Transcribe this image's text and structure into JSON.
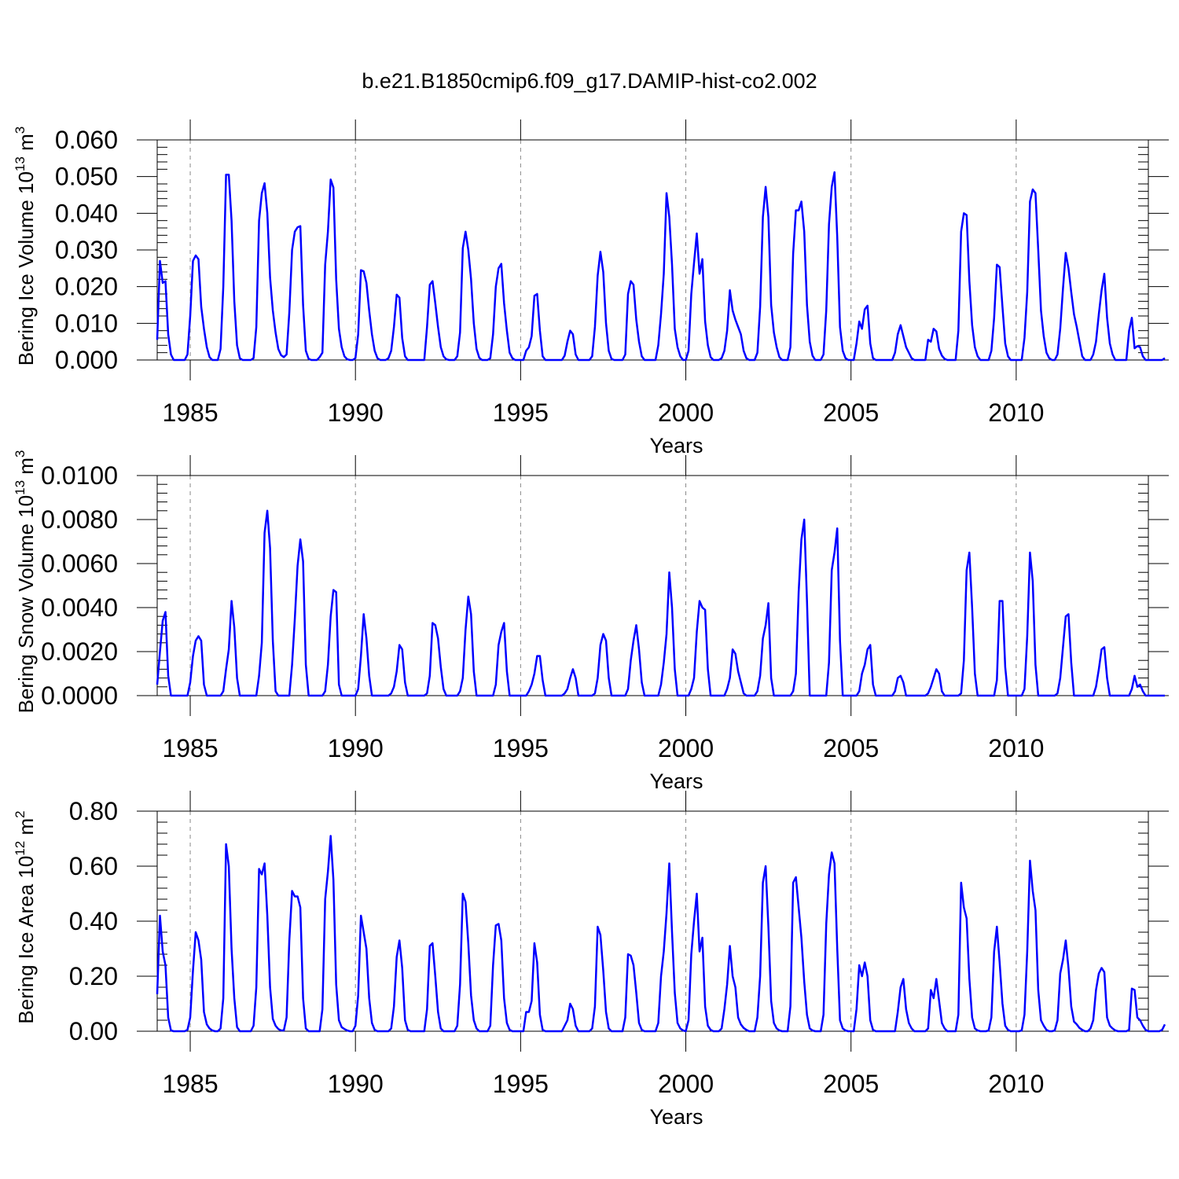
{
  "title": "b.e21.B1850cmip6.f09_g17.DAMIP-hist-co2.002",
  "colors": {
    "series": "#0000ff",
    "axes": "#000000",
    "grid": "#888888"
  },
  "chart_data": [
    {
      "type": "line",
      "ylabel_main": "Bering Ice Volume 10",
      "ylabel_exp": "13",
      "ylabel_unit": " m",
      "ylabel_unit_exp": "3",
      "xlabel": "Years",
      "xlim": [
        1984,
        2014
      ],
      "ylim": [
        0,
        0.06
      ],
      "yticks": [
        0,
        0.01,
        0.02,
        0.03,
        0.04,
        0.05,
        0.06
      ],
      "ytick_labels": [
        "0.000",
        "0.010",
        "0.020",
        "0.030",
        "0.040",
        "0.050",
        "0.060"
      ],
      "xticks": [
        1985,
        1990,
        1995,
        2000,
        2005,
        2010
      ],
      "xtick_labels": [
        "1985",
        "1990",
        "1995",
        "2000",
        "2005",
        "2010"
      ],
      "grid": "dashed vertical at 5-year ticks",
      "start": 1984.0,
      "step_months": 1,
      "values": [
        0.0055,
        0.027,
        0.021,
        0.0215,
        0.007,
        0.0015,
        0.0,
        0.0,
        0.0,
        0.0,
        0.0,
        0.0015,
        0.012,
        0.027,
        0.0285,
        0.0275,
        0.0145,
        0.0085,
        0.0035,
        0.0008,
        0.0,
        0.0,
        0.0,
        0.003,
        0.02,
        0.0505,
        0.0505,
        0.038,
        0.016,
        0.004,
        0.0005,
        0.0,
        0.0,
        0.0,
        0.0,
        0.0005,
        0.009,
        0.038,
        0.0455,
        0.0482,
        0.04,
        0.0225,
        0.0135,
        0.0075,
        0.003,
        0.0013,
        0.0008,
        0.0015,
        0.013,
        0.03,
        0.035,
        0.0362,
        0.0365,
        0.015,
        0.0025,
        0.0003,
        0.0,
        0.0,
        0.0,
        0.0008,
        0.002,
        0.026,
        0.035,
        0.0492,
        0.047,
        0.022,
        0.0085,
        0.0035,
        0.001,
        0.0002,
        0.0,
        0.0,
        0.0005,
        0.007,
        0.0245,
        0.0242,
        0.021,
        0.0135,
        0.007,
        0.0025,
        0.0005,
        0.0,
        0.0,
        0.0,
        0.0005,
        0.0025,
        0.009,
        0.0178,
        0.017,
        0.006,
        0.001,
        0.0,
        0.0,
        0.0,
        0.0,
        0.0,
        0.0,
        0.0,
        0.009,
        0.0205,
        0.0215,
        0.0155,
        0.009,
        0.0035,
        0.001,
        0.0002,
        0.0,
        0.0,
        0.0,
        0.001,
        0.0075,
        0.0305,
        0.035,
        0.03,
        0.022,
        0.01,
        0.003,
        0.0006,
        0.0,
        0.0,
        0.0,
        0.0005,
        0.007,
        0.02,
        0.025,
        0.0262,
        0.0155,
        0.008,
        0.002,
        0.0005,
        0.0,
        0.0,
        0.0,
        0.0,
        0.0025,
        0.0035,
        0.0065,
        0.0175,
        0.018,
        0.008,
        0.001,
        0.0,
        0.0,
        0.0,
        0.0,
        0.0,
        0.0,
        0.0,
        0.0012,
        0.005,
        0.008,
        0.007,
        0.0015,
        0.0,
        0.0,
        0.0,
        0.0,
        0.0,
        0.001,
        0.009,
        0.023,
        0.0295,
        0.024,
        0.01,
        0.0025,
        0.0003,
        0.0,
        0.0,
        0.0,
        0.0,
        0.0015,
        0.018,
        0.0215,
        0.0205,
        0.011,
        0.005,
        0.001,
        0.0,
        0.0,
        0.0,
        0.0,
        0.0,
        0.004,
        0.0125,
        0.0235,
        0.0455,
        0.039,
        0.026,
        0.0085,
        0.0035,
        0.001,
        0.0,
        0.0,
        0.0025,
        0.018,
        0.0265,
        0.0345,
        0.0235,
        0.0275,
        0.0105,
        0.004,
        0.0008,
        0.0,
        0.0,
        0.0,
        0.0005,
        0.0025,
        0.008,
        0.019,
        0.0135,
        0.011,
        0.009,
        0.007,
        0.0025,
        0.0005,
        0.0,
        0.0,
        0.0,
        0.002,
        0.0145,
        0.039,
        0.0472,
        0.039,
        0.015,
        0.0075,
        0.0035,
        0.0008,
        0.0,
        0.0,
        0.0,
        0.0035,
        0.029,
        0.0408,
        0.0408,
        0.0432,
        0.035,
        0.015,
        0.005,
        0.0012,
        0.0,
        0.0,
        0.0,
        0.0015,
        0.0135,
        0.037,
        0.0472,
        0.0512,
        0.0335,
        0.009,
        0.0025,
        0.0005,
        0.0,
        0.0,
        0.0,
        0.0045,
        0.0105,
        0.0085,
        0.0138,
        0.0148,
        0.0045,
        0.0005,
        0.0,
        0.0,
        0.0,
        0.0,
        0.0,
        0.0,
        0.0,
        0.002,
        0.007,
        0.0095,
        0.0065,
        0.0035,
        0.002,
        0.0005,
        0.0,
        0.0,
        0.0,
        0.0,
        0.0,
        0.0055,
        0.005,
        0.0085,
        0.0078,
        0.003,
        0.0012,
        0.0003,
        0.0,
        0.0,
        0.0,
        0.0,
        0.008,
        0.035,
        0.04,
        0.0395,
        0.0215,
        0.0095,
        0.0035,
        0.001,
        0.0,
        0.0,
        0.0,
        0.0,
        0.0025,
        0.0115,
        0.026,
        0.0253,
        0.0145,
        0.0045,
        0.001,
        0.0,
        0.0,
        0.0,
        0.0,
        0.0,
        0.006,
        0.0185,
        0.0432,
        0.0465,
        0.0455,
        0.03,
        0.0135,
        0.0065,
        0.002,
        0.0005,
        0.0,
        0.0,
        0.0015,
        0.0085,
        0.0195,
        0.0292,
        0.025,
        0.0185,
        0.0125,
        0.009,
        0.005,
        0.001,
        0.0,
        0.0,
        0.0,
        0.0015,
        0.005,
        0.0125,
        0.019,
        0.0235,
        0.0115,
        0.0045,
        0.0015,
        0.0,
        0.0,
        0.0,
        0.0,
        0.0,
        0.008,
        0.0115,
        0.0032,
        0.0038,
        0.0035,
        0.001,
        0.0,
        0.0,
        0.0,
        0.0,
        0.0,
        0.0,
        0.0,
        0.0005
      ]
    },
    {
      "type": "line",
      "ylabel_main": "Bering Snow Volume 10",
      "ylabel_exp": "13",
      "ylabel_unit": " m",
      "ylabel_unit_exp": "3",
      "xlabel": "Years",
      "xlim": [
        1984,
        2014
      ],
      "ylim": [
        0,
        0.01
      ],
      "yticks": [
        0,
        0.002,
        0.004,
        0.006,
        0.008,
        0.01
      ],
      "ytick_labels": [
        "0.0000",
        "0.0020",
        "0.0040",
        "0.0060",
        "0.0080",
        "0.0100"
      ],
      "xticks": [
        1985,
        1990,
        1995,
        2000,
        2005,
        2010
      ],
      "xtick_labels": [
        "1985",
        "1990",
        "1995",
        "2000",
        "2005",
        "2010"
      ],
      "grid": "dashed vertical at 5-year ticks",
      "start": 1984.0,
      "step_months": 1,
      "values": [
        0.0005,
        0.002,
        0.0034,
        0.0038,
        0.0009,
        0.0,
        0.0,
        0.0,
        0.0,
        0.0,
        0.0,
        0.0,
        0.0006,
        0.0018,
        0.0025,
        0.0027,
        0.0025,
        0.0005,
        0.0,
        0.0,
        0.0,
        0.0,
        0.0,
        0.0,
        0.0002,
        0.0012,
        0.0021,
        0.0043,
        0.0031,
        0.0008,
        0.0,
        0.0,
        0.0,
        0.0,
        0.0,
        0.0,
        0.0,
        0.0009,
        0.0024,
        0.0074,
        0.0084,
        0.0067,
        0.0025,
        0.0002,
        0.0,
        0.0,
        0.0,
        0.0,
        0.0,
        0.0014,
        0.0035,
        0.0059,
        0.0071,
        0.0061,
        0.0014,
        0.0,
        0.0,
        0.0,
        0.0,
        0.0,
        0.0,
        0.0002,
        0.0014,
        0.0036,
        0.0048,
        0.0047,
        0.0005,
        0.0,
        0.0,
        0.0,
        0.0,
        0.0,
        0.0,
        0.0003,
        0.0018,
        0.0037,
        0.0026,
        0.0009,
        0.0,
        0.0,
        0.0,
        0.0,
        0.0,
        0.0,
        0.0,
        0.0001,
        0.0004,
        0.0011,
        0.0023,
        0.0021,
        0.0006,
        0.0,
        0.0,
        0.0,
        0.0,
        0.0,
        0.0,
        0.0,
        0.0001,
        0.0009,
        0.0033,
        0.0032,
        0.0026,
        0.0013,
        0.0003,
        0.0,
        0.0,
        0.0,
        0.0,
        0.0,
        0.0002,
        0.0008,
        0.003,
        0.0045,
        0.0037,
        0.0011,
        0.0,
        0.0,
        0.0,
        0.0,
        0.0,
        0.0,
        0.0,
        0.0005,
        0.0023,
        0.0029,
        0.0033,
        0.0011,
        0.0,
        0.0,
        0.0,
        0.0,
        0.0,
        0.0,
        0.0,
        0.0002,
        0.0005,
        0.001,
        0.0018,
        0.0018,
        0.0007,
        0.0,
        0.0,
        0.0,
        0.0,
        0.0,
        0.0,
        0.0,
        0.0001,
        0.0003,
        0.0008,
        0.0012,
        0.0008,
        0.0,
        0.0,
        0.0,
        0.0,
        0.0,
        0.0,
        0.0001,
        0.0008,
        0.0023,
        0.0028,
        0.0025,
        0.0008,
        0.0,
        0.0,
        0.0,
        0.0,
        0.0,
        0.0,
        0.0003,
        0.0016,
        0.0025,
        0.0032,
        0.0021,
        0.0006,
        0.0,
        0.0,
        0.0,
        0.0,
        0.0,
        0.0,
        0.0005,
        0.0015,
        0.0028,
        0.0056,
        0.004,
        0.0012,
        0.0,
        0.0,
        0.0,
        0.0,
        0.0,
        0.0003,
        0.0008,
        0.0029,
        0.0043,
        0.004,
        0.0039,
        0.0012,
        0.0,
        0.0,
        0.0,
        0.0,
        0.0,
        0.0,
        0.0003,
        0.0008,
        0.0021,
        0.0019,
        0.0011,
        0.0006,
        0.0001,
        0.0,
        0.0,
        0.0,
        0.0,
        0.0002,
        0.0009,
        0.0026,
        0.0032,
        0.0042,
        0.0008,
        0.0,
        0.0,
        0.0,
        0.0,
        0.0,
        0.0,
        0.0,
        0.0002,
        0.001,
        0.0047,
        0.0071,
        0.008,
        0.0043,
        0.0,
        0.0,
        0.0,
        0.0,
        0.0,
        0.0,
        0.0,
        0.0015,
        0.0057,
        0.0065,
        0.0076,
        0.0025,
        0.0,
        0.0,
        0.0,
        0.0,
        0.0,
        0.0,
        0.0002,
        0.001,
        0.0014,
        0.0021,
        0.0023,
        0.0005,
        0.0,
        0.0,
        0.0,
        0.0,
        0.0,
        0.0,
        0.0,
        0.0002,
        0.0008,
        0.0009,
        0.0006,
        0.0,
        0.0,
        0.0,
        0.0,
        0.0,
        0.0,
        0.0,
        0.0,
        0.0001,
        0.0004,
        0.0008,
        0.0012,
        0.001,
        0.0002,
        0.0,
        0.0,
        0.0,
        0.0,
        0.0,
        0.0,
        0.0001,
        0.0016,
        0.0057,
        0.0065,
        0.004,
        0.001,
        0.0,
        0.0,
        0.0,
        0.0,
        0.0,
        0.0,
        0.0,
        0.0007,
        0.0043,
        0.0043,
        0.0013,
        0.0,
        0.0,
        0.0,
        0.0,
        0.0,
        0.0,
        0.0003,
        0.0027,
        0.0065,
        0.0052,
        0.0014,
        0.0,
        0.0,
        0.0,
        0.0,
        0.0,
        0.0,
        0.0,
        0.0001,
        0.0008,
        0.0022,
        0.0036,
        0.0037,
        0.0015,
        0.0,
        0.0,
        0.0,
        0.0,
        0.0,
        0.0,
        0.0,
        0.0,
        0.0004,
        0.0012,
        0.0021,
        0.0022,
        0.0008,
        0.0,
        0.0,
        0.0,
        0.0,
        0.0,
        0.0,
        0.0,
        0.0,
        0.0003,
        0.0009,
        0.0004,
        0.0005,
        0.0002,
        0.0,
        0.0,
        0.0,
        0.0,
        0.0,
        0.0,
        0.0,
        0.0
      ]
    },
    {
      "type": "line",
      "ylabel_main": "Bering Ice Area 10",
      "ylabel_exp": "12",
      "ylabel_unit": " m",
      "ylabel_unit_exp": "2",
      "xlabel": "Years",
      "xlim": [
        1984,
        2014
      ],
      "ylim": [
        0,
        0.8
      ],
      "yticks": [
        0,
        0.2,
        0.4,
        0.6,
        0.8
      ],
      "ytick_labels": [
        "0.00",
        "0.20",
        "0.40",
        "0.60",
        "0.80"
      ],
      "xticks": [
        1985,
        1990,
        1995,
        2000,
        2005,
        2010
      ],
      "xtick_labels": [
        "1985",
        "1990",
        "1995",
        "2000",
        "2005",
        "2010"
      ],
      "grid": "dashed vertical at 5-year ticks",
      "start": 1984.0,
      "step_months": 1,
      "values": [
        0.135,
        0.42,
        0.29,
        0.24,
        0.05,
        0.003,
        0.0,
        0.0,
        0.0,
        0.0,
        0.0,
        0.005,
        0.05,
        0.22,
        0.36,
        0.33,
        0.26,
        0.07,
        0.025,
        0.01,
        0.003,
        0.0,
        0.0,
        0.01,
        0.12,
        0.68,
        0.6,
        0.3,
        0.12,
        0.015,
        0.0,
        0.0,
        0.0,
        0.0,
        0.0,
        0.02,
        0.16,
        0.59,
        0.57,
        0.61,
        0.42,
        0.16,
        0.045,
        0.02,
        0.008,
        0.003,
        0.003,
        0.05,
        0.33,
        0.51,
        0.49,
        0.49,
        0.45,
        0.12,
        0.01,
        0.0,
        0.0,
        0.0,
        0.0,
        0.0,
        0.08,
        0.48,
        0.58,
        0.71,
        0.55,
        0.17,
        0.04,
        0.015,
        0.008,
        0.003,
        0.0,
        0.0,
        0.02,
        0.13,
        0.42,
        0.36,
        0.3,
        0.12,
        0.03,
        0.005,
        0.0,
        0.0,
        0.0,
        0.0,
        0.0,
        0.01,
        0.09,
        0.27,
        0.33,
        0.23,
        0.04,
        0.005,
        0.0,
        0.0,
        0.0,
        0.0,
        0.0,
        0.0,
        0.08,
        0.31,
        0.32,
        0.2,
        0.07,
        0.01,
        0.0,
        0.0,
        0.0,
        0.0,
        0.0,
        0.02,
        0.17,
        0.5,
        0.47,
        0.32,
        0.13,
        0.04,
        0.01,
        0.0,
        0.0,
        0.0,
        0.0,
        0.02,
        0.24,
        0.385,
        0.39,
        0.33,
        0.12,
        0.03,
        0.005,
        0.0,
        0.0,
        0.0,
        0.0,
        0.0,
        0.07,
        0.07,
        0.11,
        0.32,
        0.25,
        0.06,
        0.005,
        0.0,
        0.0,
        0.0,
        0.0,
        0.0,
        0.0,
        0.0,
        0.02,
        0.04,
        0.1,
        0.08,
        0.02,
        0.0,
        0.0,
        0.0,
        0.0,
        0.0,
        0.01,
        0.09,
        0.38,
        0.35,
        0.22,
        0.07,
        0.01,
        0.0,
        0.0,
        0.0,
        0.0,
        0.0,
        0.05,
        0.28,
        0.275,
        0.24,
        0.14,
        0.03,
        0.005,
        0.0,
        0.0,
        0.0,
        0.0,
        0.0,
        0.03,
        0.2,
        0.29,
        0.43,
        0.61,
        0.36,
        0.14,
        0.03,
        0.01,
        0.003,
        0.0,
        0.04,
        0.28,
        0.4,
        0.5,
        0.29,
        0.34,
        0.09,
        0.02,
        0.005,
        0.0,
        0.0,
        0.0,
        0.01,
        0.08,
        0.17,
        0.31,
        0.2,
        0.16,
        0.05,
        0.025,
        0.012,
        0.005,
        0.0,
        0.0,
        0.0,
        0.05,
        0.2,
        0.54,
        0.6,
        0.38,
        0.11,
        0.03,
        0.01,
        0.003,
        0.0,
        0.0,
        0.0,
        0.09,
        0.54,
        0.56,
        0.45,
        0.34,
        0.18,
        0.06,
        0.01,
        0.003,
        0.0,
        0.0,
        0.0,
        0.06,
        0.39,
        0.57,
        0.65,
        0.61,
        0.3,
        0.04,
        0.01,
        0.003,
        0.0,
        0.0,
        0.0,
        0.08,
        0.24,
        0.2,
        0.25,
        0.2,
        0.04,
        0.005,
        0.0,
        0.0,
        0.0,
        0.0,
        0.0,
        0.0,
        0.0,
        0.0,
        0.07,
        0.16,
        0.19,
        0.08,
        0.03,
        0.01,
        0.0,
        0.0,
        0.0,
        0.0,
        0.0,
        0.01,
        0.15,
        0.12,
        0.19,
        0.11,
        0.03,
        0.01,
        0.0,
        0.0,
        0.0,
        0.0,
        0.06,
        0.54,
        0.45,
        0.41,
        0.19,
        0.05,
        0.01,
        0.003,
        0.0,
        0.0,
        0.0,
        0.003,
        0.05,
        0.29,
        0.38,
        0.25,
        0.1,
        0.02,
        0.005,
        0.0,
        0.0,
        0.0,
        0.0,
        0.003,
        0.06,
        0.29,
        0.62,
        0.51,
        0.44,
        0.15,
        0.04,
        0.02,
        0.005,
        0.0,
        0.0,
        0.003,
        0.04,
        0.21,
        0.26,
        0.33,
        0.23,
        0.09,
        0.035,
        0.025,
        0.012,
        0.005,
        0.0,
        0.0,
        0.01,
        0.04,
        0.15,
        0.21,
        0.23,
        0.215,
        0.05,
        0.02,
        0.01,
        0.003,
        0.0,
        0.0,
        0.0,
        0.0,
        0.005,
        0.155,
        0.15,
        0.05,
        0.04,
        0.02,
        0.005,
        0.0,
        0.0,
        0.0,
        0.0,
        0.0,
        0.005,
        0.025
      ]
    }
  ]
}
